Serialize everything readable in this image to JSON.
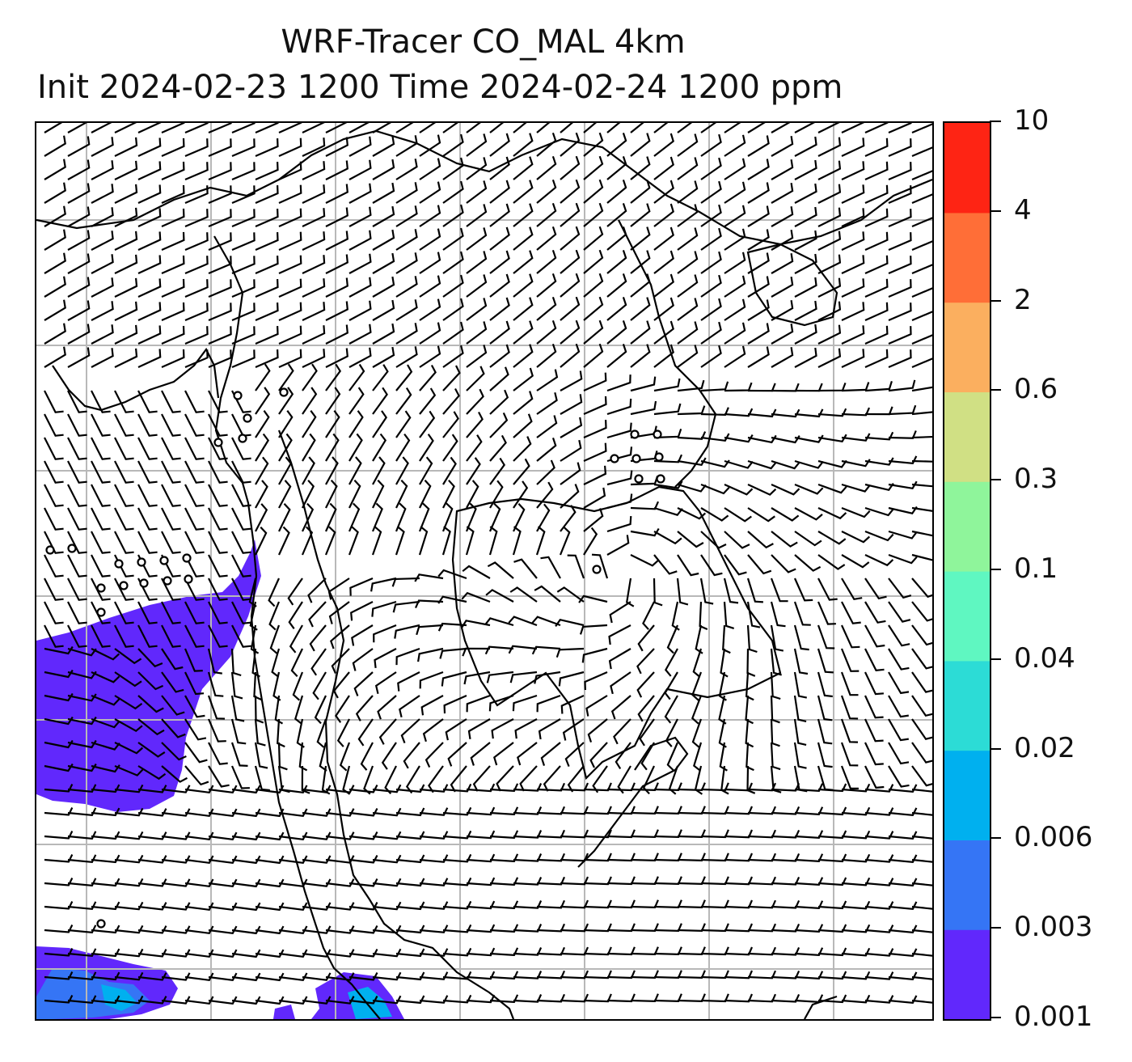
{
  "title": {
    "line1": "WRF-Tracer CO_MAL 4km",
    "line2": "Init 2024-02-23 1200 Time 2024-02-24 1200 ppm"
  },
  "colorbar": {
    "levels": [
      "0.001",
      "0.003",
      "0.006",
      "0.02",
      "0.04",
      "0.1",
      "0.3",
      "0.6",
      "2",
      "4",
      "10"
    ],
    "colors": [
      "#6128fc",
      "#3575f5",
      "#00b0ef",
      "#2cdcd6",
      "#5ff7c1",
      "#8ff59b",
      "#d0e084",
      "#fbaf5f",
      "#ff6e37",
      "#fe2414"
    ]
  },
  "map": {
    "plume_color": "#6128fc",
    "plume_secondary_color": "#3575f5",
    "plume_tertiary_color": "#00b0ef",
    "gridline_color": "#b8b8b8",
    "coastline_color": "#000000",
    "barb_color": "#000000"
  }
}
